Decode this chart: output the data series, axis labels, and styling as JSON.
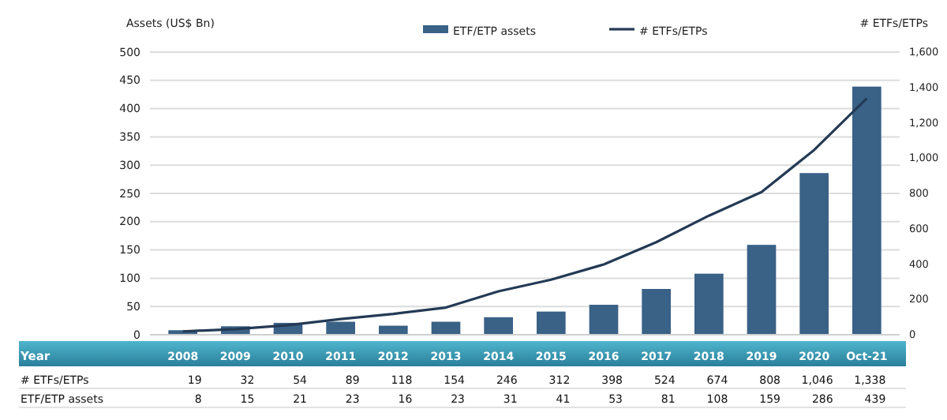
{
  "chart_data": {
    "type": "bar",
    "annotations": [
      "Year"
    ],
    "ylabel": "Assets (US$ Bn)",
    "y2label": "# ETFs/ETPs",
    "categories": [
      "2008",
      "2009",
      "2010",
      "2011",
      "2012",
      "2013",
      "2014",
      "2015",
      "2016",
      "2017",
      "2018",
      "2019",
      "2020",
      "Oct-21"
    ],
    "series": [
      {
        "name": "ETF/ETP assets",
        "color": "#3a6186",
        "values": [
          8,
          15,
          21,
          23,
          16,
          23,
          31,
          41,
          53,
          81,
          108,
          159,
          286,
          439
        ],
        "value_labels": [
          "8",
          "15",
          "21",
          "23",
          "16",
          "23",
          "31",
          "41",
          "53",
          "81",
          "108",
          "159",
          "286",
          "439"
        ]
      },
      {
        "name": "# ETFs/ETPs",
        "type": "line",
        "axis": "y2",
        "color": "#243a55",
        "values": [
          19,
          32,
          54,
          89,
          118,
          154,
          246,
          312,
          398,
          524,
          674,
          808,
          1046,
          1338
        ],
        "value_labels": [
          "19",
          "32",
          "54",
          "89",
          "118",
          "154",
          "246",
          "312",
          "398",
          "524",
          "674",
          "808",
          "1,046",
          "1,338"
        ]
      }
    ],
    "ylim": [
      0,
      500
    ],
    "yticks": [
      0,
      50,
      100,
      150,
      200,
      250,
      300,
      350,
      400,
      450,
      500
    ],
    "y2lim": [
      0,
      1600
    ],
    "y2ticks": [
      0,
      200,
      400,
      600,
      800,
      {
        "value": 1000,
        "label": "1,000"
      },
      {
        "value": 1200,
        "label": "1,200"
      },
      {
        "value": 1400,
        "label": "1,400"
      },
      {
        "value": 1600,
        "label": "1,600"
      }
    ],
    "grid": "y",
    "legend": "top",
    "marker": "none",
    "line_style": "solid"
  }
}
